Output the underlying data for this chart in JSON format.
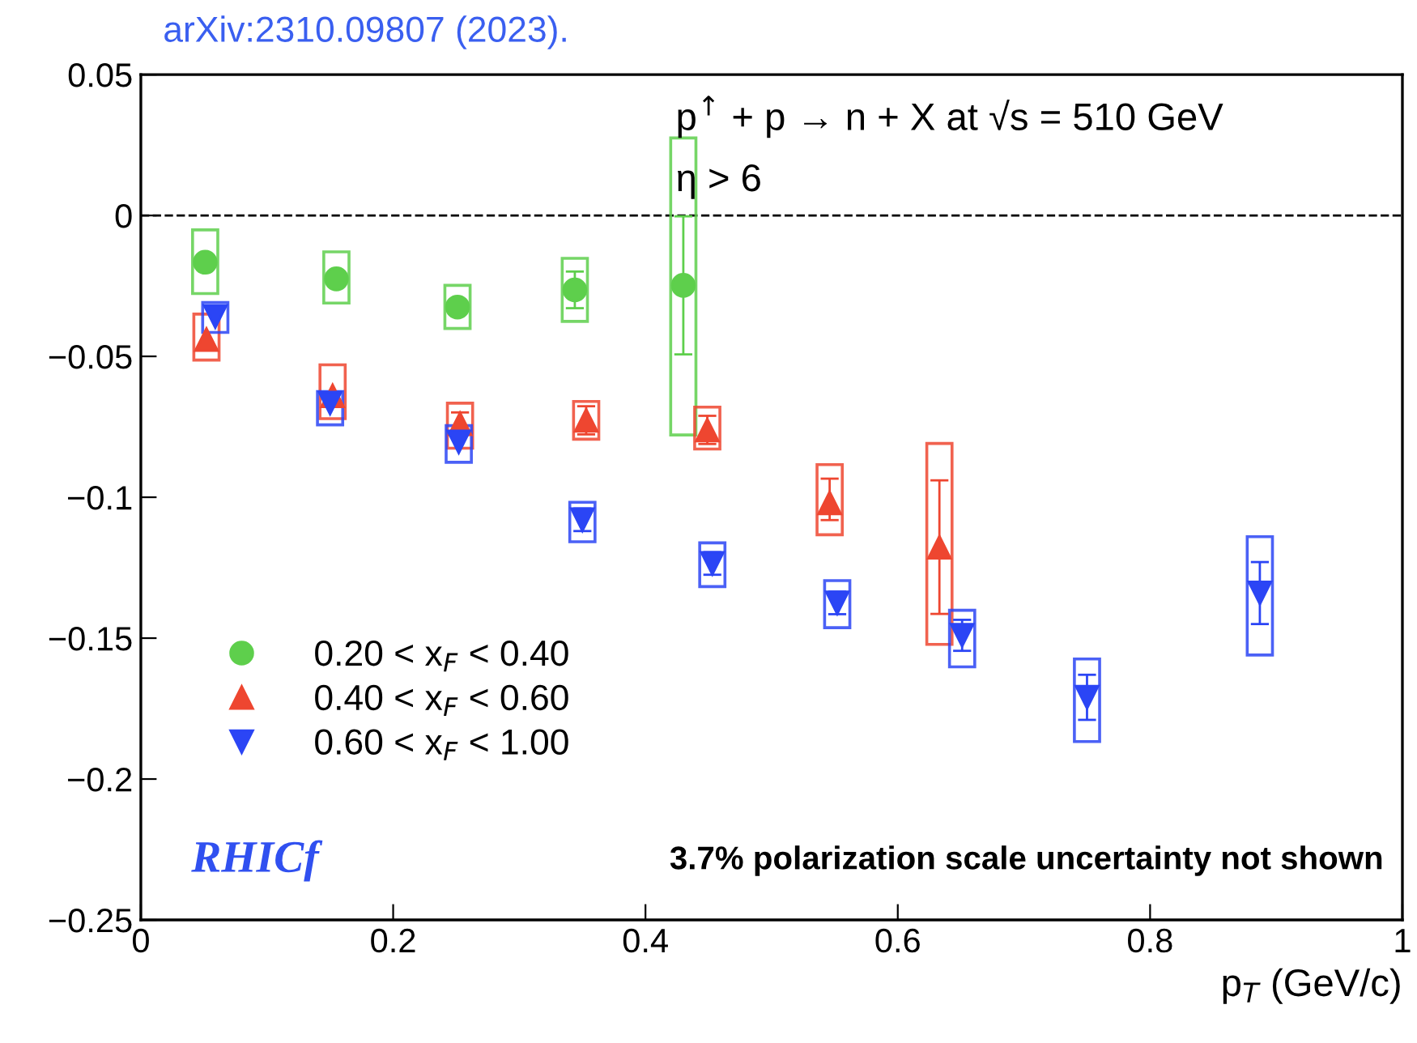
{
  "chart_data": {
    "type": "scatter",
    "xlabel": "p$_{T}$ (GeV/c)",
    "xlim": [
      0,
      1
    ],
    "xticks": [
      0,
      0.2,
      0.4,
      0.6,
      0.8,
      1
    ],
    "ylim": [
      -0.25,
      0.05
    ],
    "yticks": [
      0.05,
      0,
      {
        "value": -0.05,
        "label": "−0.05"
      },
      {
        "value": -0.1,
        "label": "−0.1"
      },
      {
        "value": -0.15,
        "label": "−0.15"
      },
      {
        "value": -0.2,
        "label": "−0.2"
      },
      {
        "value": -0.25,
        "label": "−0.25"
      }
    ],
    "grid": false,
    "legend": "bottom left",
    "ref_lines": [
      {
        "axis": "y",
        "value": 0,
        "color": "#000000",
        "line_style": "dashed"
      }
    ],
    "annotations": [
      "arXiv:2310.09807 (2023).",
      "p$^{↑}$ + p → n + X at √s = 510 GeV",
      "η > 6",
      "RHICf",
      "3.7% polarization scale uncertainty not shown"
    ],
    "series": [
      {
        "type": "bar",
        "color": "#5ecf4c",
        "x": [
          0.051,
          0.155,
          0.251,
          0.344,
          0.43
        ],
        "base": [
          -0.0277,
          -0.0311,
          -0.0401,
          -0.0376,
          -0.0779
        ],
        "values": [
          0.0226,
          0.0182,
          0.0153,
          0.0224,
          0.1054
        ]
      },
      {
        "type": "bar",
        "color": "#ee4630",
        "x": [
          0.052,
          0.152,
          0.253,
          0.353,
          0.449,
          0.546,
          0.633
        ],
        "base": [
          -0.0513,
          -0.0721,
          -0.0826,
          -0.0794,
          -0.0829,
          -0.1133,
          -0.1522
        ],
        "values": [
          0.0163,
          0.0191,
          0.016,
          0.0134,
          0.0149,
          0.0249,
          0.0713
        ]
      },
      {
        "type": "bar",
        "color": "#2b45f5",
        "x": [
          0.059,
          0.15,
          0.252,
          0.35,
          0.453,
          0.552,
          0.651,
          0.75,
          0.887
        ],
        "base": [
          -0.0415,
          -0.0743,
          -0.0876,
          -0.1158,
          -0.1317,
          -0.1463,
          -0.1602,
          -0.1867,
          -0.156
        ],
        "values": [
          0.0106,
          0.0118,
          0.013,
          0.014,
          0.0155,
          0.0167,
          0.0201,
          0.0293,
          0.042
        ]
      },
      {
        "name": "0.20 < x$_{F}$ < 0.40",
        "color": "#5ecf4c",
        "marker": "circle",
        "x": [
          0.051,
          0.155,
          0.251,
          0.344,
          0.43
        ],
        "values": [
          -0.0166,
          -0.0225,
          -0.0325,
          -0.0264,
          -0.0248
        ],
        "errors": [
          null,
          null,
          null,
          0.0065,
          0.0245
        ]
      },
      {
        "name": "0.40 < x$_{F}$ < 0.60",
        "color": "#ee4630",
        "marker": "triangle",
        "x": [
          0.052,
          0.152,
          0.253,
          0.353,
          0.449,
          0.546,
          0.633
        ],
        "values": [
          -0.044,
          -0.064,
          -0.0739,
          -0.0727,
          -0.0761,
          -0.102,
          -0.1177
        ],
        "errors": [
          null,
          null,
          0.004,
          0.005,
          0.005,
          [
            -0.1081,
            -0.0934
          ],
          0.0237
        ]
      },
      {
        "name": "0.60 < x$_{F}$ < 1.00",
        "color": "#2b45f5",
        "marker": "triangle_down",
        "x": [
          0.059,
          0.15,
          0.252,
          0.35,
          0.453,
          0.552,
          0.651,
          0.75,
          0.887
        ],
        "values": [
          -0.0359,
          -0.0666,
          -0.0804,
          -0.108,
          -0.1235,
          -0.1375,
          -0.149,
          -0.171,
          -0.134
        ],
        "errors": [
          null,
          null,
          null,
          0.004,
          0.004,
          0.004,
          0.0055,
          0.008,
          0.011
        ]
      }
    ]
  }
}
